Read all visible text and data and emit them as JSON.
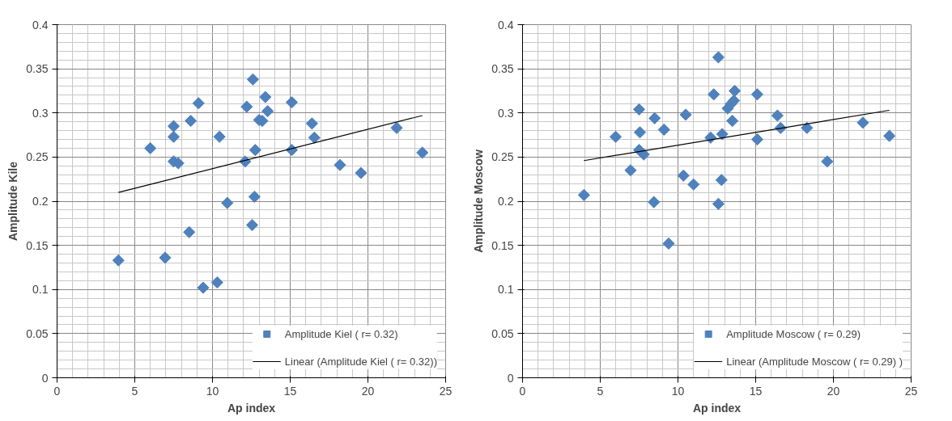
{
  "chart_data": [
    {
      "type": "scatter",
      "xlabel": "Ap index",
      "ylabel": "Amplitude Kile",
      "xlim": [
        0,
        25
      ],
      "ylim": [
        0,
        0.4
      ],
      "xticks": [
        0,
        5,
        10,
        15,
        20,
        25
      ],
      "yticks": [
        0,
        0.05,
        0.1,
        0.15,
        0.2,
        0.25,
        0.3,
        0.35,
        0.4
      ],
      "grid": true,
      "legend": "bottom right",
      "series": [
        {
          "name": "Amplitude Kiel ( r= 0.32)",
          "color": "#4f81bd",
          "marker": "diamond",
          "x": [
            3.95,
            6.0,
            6.95,
            7.5,
            7.5,
            7.5,
            7.8,
            8.5,
            8.6,
            9.1,
            9.4,
            10.3,
            10.45,
            10.95,
            12.1,
            12.2,
            12.55,
            12.6,
            12.75,
            12.7,
            13.0,
            13.2,
            13.4,
            13.55,
            15.1,
            15.1,
            16.4,
            16.55,
            18.2,
            19.55,
            21.85,
            23.5
          ],
          "values": [
            0.133,
            0.26,
            0.136,
            0.285,
            0.273,
            0.245,
            0.243,
            0.165,
            0.291,
            0.311,
            0.102,
            0.108,
            0.273,
            0.198,
            0.245,
            0.307,
            0.173,
            0.338,
            0.258,
            0.205,
            0.292,
            0.291,
            0.318,
            0.302,
            0.312,
            0.258,
            0.288,
            0.272,
            0.241,
            0.232,
            0.283,
            0.255
          ]
        },
        {
          "name": "Linear (Amplitude Kiel ( r= 0.32))",
          "type": "line",
          "color": "#000000",
          "marker": "none",
          "x": [
            3.95,
            23.5
          ],
          "values": [
            0.21,
            0.297
          ]
        }
      ]
    },
    {
      "type": "scatter",
      "xlabel": "Ap index",
      "ylabel": "Amplitude Moscow",
      "xlim": [
        0,
        25
      ],
      "ylim": [
        0,
        0.4
      ],
      "xticks": [
        0,
        5,
        10,
        15,
        20,
        25
      ],
      "yticks": [
        0,
        0.05,
        0.1,
        0.15,
        0.2,
        0.25,
        0.3,
        0.35,
        0.4
      ],
      "grid": true,
      "legend": "bottom right",
      "series": [
        {
          "name": "Amplitude Moscow ( r= 0.29)",
          "color": "#4f81bd",
          "marker": "diamond",
          "x": [
            3.95,
            5.99,
            6.95,
            7.5,
            7.55,
            7.5,
            7.8,
            8.45,
            8.5,
            9.1,
            9.4,
            10.5,
            10.35,
            11.0,
            12.1,
            12.3,
            12.6,
            12.6,
            12.8,
            12.85,
            13.2,
            13.4,
            13.6,
            13.5,
            13.65,
            15.1,
            15.1,
            16.4,
            16.6,
            18.3,
            19.6,
            21.9,
            23.6
          ],
          "values": [
            0.207,
            0.273,
            0.235,
            0.304,
            0.278,
            0.258,
            0.253,
            0.199,
            0.294,
            0.281,
            0.152,
            0.298,
            0.229,
            0.219,
            0.272,
            0.321,
            0.363,
            0.197,
            0.224,
            0.276,
            0.305,
            0.31,
            0.314,
            0.291,
            0.325,
            0.321,
            0.27,
            0.297,
            0.283,
            0.283,
            0.245,
            0.289,
            0.274
          ]
        },
        {
          "name": "Linear (Amplitude Moscow ( r= 0.29) )",
          "type": "line",
          "color": "#000000",
          "marker": "none",
          "x": [
            3.95,
            23.6
          ],
          "values": [
            0.246,
            0.303
          ]
        }
      ]
    }
  ]
}
